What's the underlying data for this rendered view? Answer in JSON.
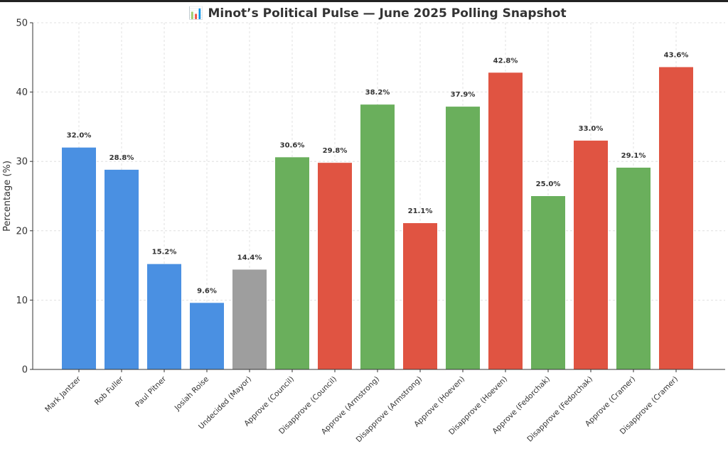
{
  "chart_data": {
    "type": "bar",
    "title": "📊 Minot’s Political Pulse — June 2025 Polling Snapshot",
    "xlabel": "",
    "ylabel": "Percentage (%)",
    "ylim": [
      0,
      50
    ],
    "yticks": [
      0,
      10,
      20,
      30,
      40,
      50
    ],
    "grid": true,
    "categories": [
      "Mark Jantzer",
      "Rob Fuller",
      "Paul Pitner",
      "Josiah Roise",
      "Undecided (Mayor)",
      "Approve (Council)",
      "Disapprove (Council)",
      "Approve (Armstrong)",
      "Disapprove (Armstrong)",
      "Approve (Hoeven)",
      "Disapprove (Hoeven)",
      "Approve (Fedorchak)",
      "Disapprove (Fedorchak)",
      "Approve (Cramer)",
      "Disapprove (Cramer)"
    ],
    "values": [
      32.0,
      28.8,
      15.2,
      9.6,
      14.4,
      30.6,
      29.8,
      38.2,
      21.1,
      37.9,
      42.8,
      25.0,
      33.0,
      29.1,
      43.6
    ],
    "value_labels": [
      "32.0%",
      "28.8%",
      "15.2%",
      "9.6%",
      "14.4%",
      "30.6%",
      "29.8%",
      "38.2%",
      "21.1%",
      "37.9%",
      "42.8%",
      "25.0%",
      "33.0%",
      "29.1%",
      "43.6%"
    ],
    "bar_colors": [
      "#4a90e2",
      "#4a90e2",
      "#4a90e2",
      "#4a90e2",
      "#9e9e9e",
      "#6aaf5c",
      "#e05442",
      "#6aaf5c",
      "#e05442",
      "#6aaf5c",
      "#e05442",
      "#6aaf5c",
      "#e05442",
      "#6aaf5c",
      "#e05442"
    ]
  }
}
